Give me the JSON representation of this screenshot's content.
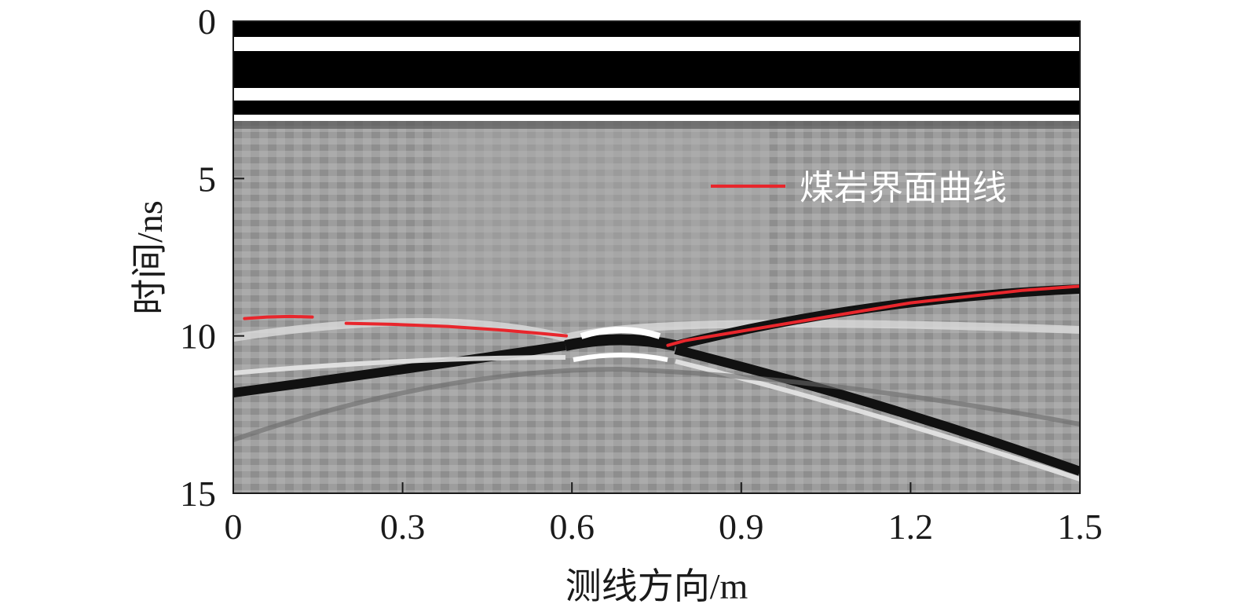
{
  "chart_data": {
    "type": "heatmap",
    "title": "",
    "xlabel": "测线方向/m",
    "ylabel": "时间/ns",
    "xlim": [
      0,
      1.5
    ],
    "ylim": [
      0,
      15
    ],
    "y_inverted": true,
    "x_ticks": [
      0,
      0.3,
      0.6,
      0.9,
      1.2,
      1.5
    ],
    "x_tick_labels": [
      "0",
      "0.3",
      "0.6",
      "0.9",
      "1.2",
      "1.5"
    ],
    "y_ticks": [
      0,
      5,
      10,
      15
    ],
    "y_tick_labels": [
      "0",
      "5",
      "10",
      "15"
    ],
    "grid": false,
    "legend": {
      "placement": "top-right",
      "entries": [
        "煤岩界面曲线"
      ]
    },
    "series": [
      {
        "name": "煤岩界面曲线",
        "color": "#e8262c",
        "segments": [
          [
            [
              0.02,
              9.45
            ],
            [
              0.06,
              9.4
            ],
            [
              0.1,
              9.38
            ],
            [
              0.14,
              9.4
            ]
          ],
          [
            [
              0.2,
              9.6
            ],
            [
              0.28,
              9.63
            ],
            [
              0.38,
              9.7
            ],
            [
              0.48,
              9.82
            ],
            [
              0.55,
              9.93
            ],
            [
              0.59,
              10.0
            ]
          ],
          [
            [
              0.77,
              10.3
            ],
            [
              0.8,
              10.15
            ],
            [
              0.9,
              9.85
            ],
            [
              1.0,
              9.55
            ],
            [
              1.1,
              9.25
            ],
            [
              1.2,
              8.95
            ],
            [
              1.3,
              8.75
            ],
            [
              1.4,
              8.55
            ],
            [
              1.5,
              8.42
            ]
          ]
        ]
      }
    ]
  }
}
